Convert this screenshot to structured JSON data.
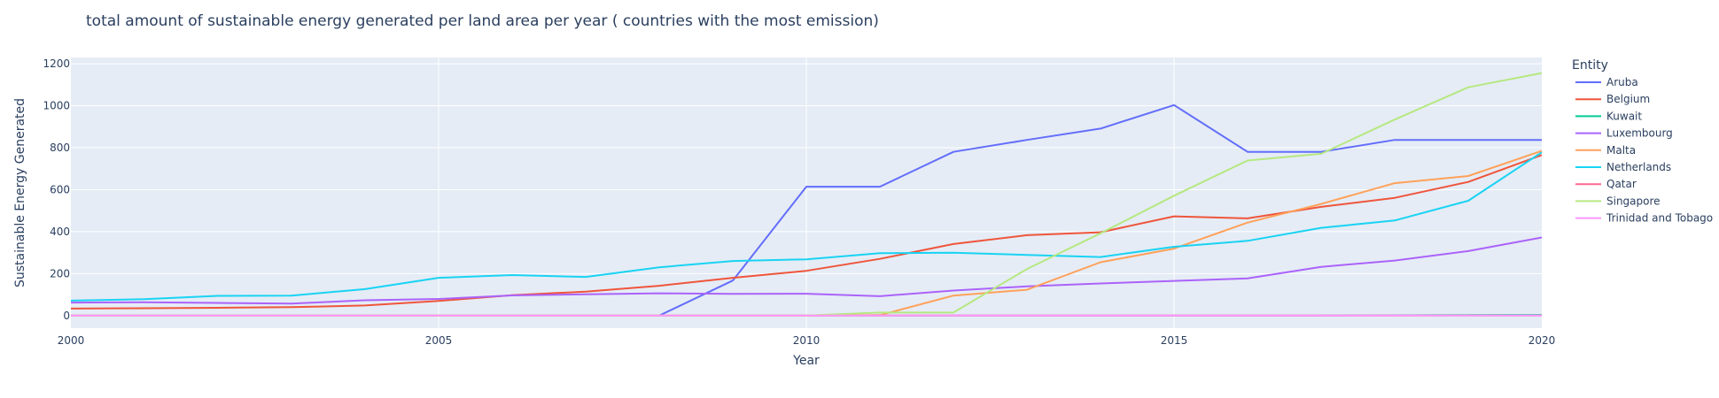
{
  "chart_data": {
    "type": "line",
    "title": "total amount of sustainable energy generated per land area per year ( countries with the most emission)",
    "xlabel": "Year",
    "ylabel": "Sustainable Energy Generated",
    "xlim": [
      2000,
      2020
    ],
    "ylim": [
      -60,
      1230
    ],
    "x_ticks": [
      2000,
      2005,
      2010,
      2015,
      2020
    ],
    "y_ticks": [
      0,
      200,
      400,
      600,
      800,
      1000,
      1200
    ],
    "grid": true,
    "legend_title": "Entity",
    "legend_position": "right",
    "x": [
      2000,
      2001,
      2002,
      2003,
      2004,
      2005,
      2006,
      2007,
      2008,
      2009,
      2010,
      2011,
      2012,
      2013,
      2014,
      2015,
      2016,
      2017,
      2018,
      2019,
      2020
    ],
    "series": [
      {
        "name": "Aruba",
        "color": "#636efa",
        "values": [
          null,
          null,
          null,
          null,
          null,
          null,
          null,
          null,
          0,
          167,
          614,
          614,
          780,
          837,
          891,
          1003,
          780,
          780,
          837,
          837,
          837
        ]
      },
      {
        "name": "Belgium",
        "color": "#EF553B",
        "values": [
          33,
          35,
          37,
          40,
          48,
          70,
          97,
          114,
          142,
          180,
          213,
          270,
          341,
          383,
          397,
          473,
          463,
          518,
          561,
          637,
          765
        ]
      },
      {
        "name": "Kuwait",
        "color": "#00cc96",
        "values": [
          0,
          0,
          0,
          0,
          0,
          0,
          0,
          0,
          0,
          0,
          0,
          0,
          0,
          0,
          0,
          0,
          0,
          0,
          1,
          2,
          3
        ]
      },
      {
        "name": "Luxembourg",
        "color": "#ab63fa",
        "values": [
          62,
          63,
          60,
          57,
          73,
          79,
          96,
          101,
          106,
          103,
          104,
          92,
          119,
          139,
          153,
          165,
          177,
          232,
          262,
          307,
          372
        ]
      },
      {
        "name": "Malta",
        "color": "#FFA15A",
        "values": [
          0,
          0,
          0,
          0,
          0,
          0,
          0,
          0,
          0,
          0,
          0,
          2,
          95,
          123,
          254,
          319,
          443,
          532,
          631,
          665,
          785
        ]
      },
      {
        "name": "Netherlands",
        "color": "#19d3f3",
        "values": [
          71,
          78,
          94,
          95,
          126,
          180,
          193,
          184,
          230,
          260,
          268,
          297,
          299,
          289,
          279,
          328,
          356,
          418,
          453,
          547,
          778
        ]
      },
      {
        "name": "Qatar",
        "color": "#FF6692",
        "values": [
          0,
          0,
          0,
          0,
          0,
          0,
          0,
          0,
          0,
          0,
          0,
          0,
          0,
          0,
          0,
          0,
          0,
          0,
          0,
          0,
          0
        ]
      },
      {
        "name": "Singapore",
        "color": "#B6E880",
        "values": [
          0,
          0,
          0,
          0,
          0,
          0,
          0,
          0,
          0,
          0,
          0,
          14,
          14,
          222,
          392,
          571,
          739,
          771,
          934,
          1088,
          1156
        ]
      },
      {
        "name": "Trinidad and Tobago",
        "color": "#FF97FF",
        "values": [
          0,
          0,
          0,
          0,
          0,
          0,
          0,
          0,
          0,
          0,
          0,
          0,
          0,
          0,
          0,
          0,
          0,
          0,
          0,
          0,
          0
        ]
      }
    ]
  }
}
